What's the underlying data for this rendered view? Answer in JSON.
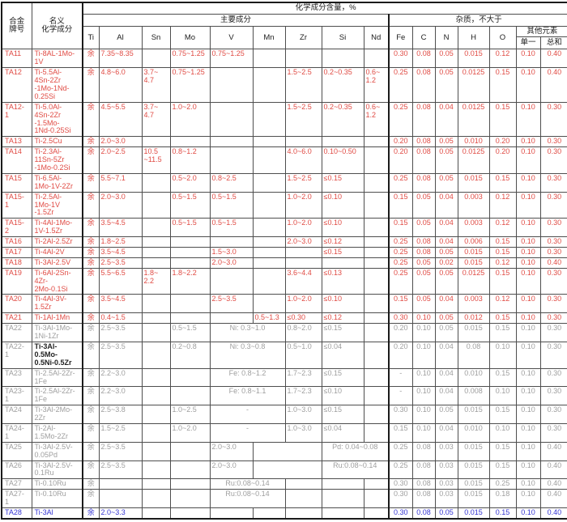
{
  "colors": {
    "primary_red": "#e04b44",
    "secondary_gray": "#9e9e9e",
    "highlight_blue": "#3535d3",
    "dark_text": "#222222",
    "border": "#4e4e4e"
  },
  "header": {
    "grade": "合金\n牌号",
    "nominal": "名义\n化学成分",
    "content_group": "化学成分含量，%",
    "main_group": "主要成分",
    "impurity_group": "杂质，不大于",
    "other_group": "其他元素",
    "main_cols": [
      "Ti",
      "Al",
      "Sn",
      "Mo",
      "V",
      "Mn",
      "Zr",
      "Si",
      "Nd"
    ],
    "impurity_cols": [
      "Fe",
      "C",
      "N",
      "H",
      "O"
    ],
    "other_cols": [
      "单一",
      "总和"
    ]
  },
  "rows": [
    {
      "grade": "TA11",
      "name": "Ti-8AL-1Mo-\n1V",
      "tone": "red",
      "ti": "余",
      "al": "7.35~8.35",
      "sn": "",
      "mo": "0.75~1.25",
      "v": "0.75~1.25",
      "mn": "",
      "zr": "",
      "si": "",
      "nd": "",
      "imp": [
        "0.30",
        "0.08",
        "0.05",
        "0.015",
        "0.12",
        "0.10",
        "0.40"
      ]
    },
    {
      "grade": "TA12",
      "name": "Ti-5.5Al-\n4Sn-2Zr\n-1Mo-1Nd-\n0.25Si",
      "tone": "red",
      "ti": "余",
      "al": "4.8~6.0",
      "sn": "3.7~\n4.7",
      "mo": "0.75~1.25",
      "v": "",
      "mn": "",
      "zr": "1.5~2.5",
      "si": "0.2~0.35",
      "nd": "0.6~\n1.2",
      "imp": [
        "0.25",
        "0.08",
        "0.05",
        "0.0125",
        "0.15",
        "0.10",
        "0.40"
      ]
    },
    {
      "grade": "TA12-\n1",
      "name": "Ti-5.0Al-\n4Sn-2Zr\n-1.5Mo-\n1Nd-0.25Si",
      "tone": "red",
      "ti": "余",
      "al": "4.5~5.5",
      "sn": "3.7~\n4.7",
      "mo": "1.0~2.0",
      "v": "",
      "mn": "",
      "zr": "1.5~2.5",
      "si": "0.2~0.35",
      "nd": "0.6~\n1.2",
      "imp": [
        "0.25",
        "0.08",
        "0.04",
        "0.0125",
        "0.15",
        "0.10",
        "0.30"
      ]
    },
    {
      "grade": "TA13",
      "name": "Ti-2.5Cu",
      "tone": "red",
      "ti": "余",
      "al": "2.0~3.0",
      "sn": "",
      "mo": "",
      "v": "",
      "mn": "",
      "zr": "",
      "si": "",
      "nd": "",
      "imp": [
        "0.20",
        "0.08",
        "0.05",
        "0.010",
        "0.20",
        "0.10",
        "0.30"
      ]
    },
    {
      "grade": "TA14",
      "name": "Ti-2.3Al-\n11Sn-5Zr\n-1Mo-0.2Si",
      "tone": "red",
      "ti": "余",
      "al": "2.0~2.5",
      "sn": "10.5\n~11.5",
      "mo": "0.8~1.2",
      "v": "",
      "mn": "",
      "zr": "4.0~6.0",
      "si": "0.10~0.50",
      "nd": "",
      "imp": [
        "0.20",
        "0.08",
        "0.05",
        "0.0125",
        "0.20",
        "0.10",
        "0.30"
      ]
    },
    {
      "grade": "TA15",
      "name": "Ti-6.5Al-\n1Mo-1V-2Zr",
      "tone": "red",
      "ti": "余",
      "al": "5.5~7.1",
      "sn": "",
      "mo": "0.5~2.0",
      "v": "0.8~2.5",
      "mn": "",
      "zr": "1.5~2.5",
      "si": "≤0.15",
      "nd": "",
      "imp": [
        "0.25",
        "0.08",
        "0.05",
        "0.015",
        "0.15",
        "0.10",
        "0.30"
      ]
    },
    {
      "grade": "TA15-\n1",
      "name": "Ti-2.5Al-\n1Mo-1V\n-1.5Zr",
      "tone": "red",
      "ti": "余",
      "al": "2.0~3.0",
      "sn": "",
      "mo": "0.5~1.5",
      "v": "0.5~1.5",
      "mn": "",
      "zr": "1.0~2.0",
      "si": "≤0.10",
      "nd": "",
      "imp": [
        "0.15",
        "0.05",
        "0.04",
        "0.003",
        "0.12",
        "0.10",
        "0.30"
      ]
    },
    {
      "grade": "TA15-\n2",
      "name": "Ti-4Al-1Mo-\n1V-1.5Zr",
      "tone": "red",
      "ti": "余",
      "al": "3.5~4.5",
      "sn": "",
      "mo": "0.5~1.5",
      "v": "0.5~1.5",
      "mn": "",
      "zr": "1.0~2.0",
      "si": "≤0.10",
      "nd": "",
      "imp": [
        "0.15",
        "0.05",
        "0.04",
        "0.003",
        "0.12",
        "0.10",
        "0.30"
      ]
    },
    {
      "grade": "TA16",
      "name": "Ti-2Al-2.5Zr",
      "tone": "red",
      "ti": "余",
      "al": "1.8~2.5",
      "sn": "",
      "mo": "",
      "v": "",
      "mn": "",
      "zr": "2.0~3.0",
      "si": "≤0.12",
      "nd": "",
      "imp": [
        "0.25",
        "0.08",
        "0.04",
        "0.006",
        "0.15",
        "0.10",
        "0.30"
      ]
    },
    {
      "grade": "TA17",
      "name": "Ti-4Al-2V",
      "tone": "red",
      "ti": "余",
      "al": "3.5~4.5",
      "sn": "",
      "mo": "",
      "v": "1.5~3.0",
      "mn": "",
      "zr": "",
      "si": "≤0.15",
      "nd": "",
      "imp": [
        "0.25",
        "0.08",
        "0.05",
        "0.015",
        "0.15",
        "0.10",
        "0.30"
      ]
    },
    {
      "grade": "TA18",
      "name": "Ti-3Al-2.5V",
      "tone": "red",
      "ti": "余",
      "al": "2.5~3.5",
      "sn": "",
      "mo": "",
      "v": "2.0~3.0",
      "mn": "",
      "zr": "",
      "si": "",
      "nd": "",
      "imp": [
        "0.25",
        "0.05",
        "0.02",
        "0.015",
        "0.12",
        "0.10",
        "0.40"
      ]
    },
    {
      "grade": "TA19",
      "name": "Ti-6Al-2Sn-\n4Zr-\n2Mo-0.1Si",
      "tone": "red",
      "ti": "余",
      "al": "5.5~6.5",
      "sn": "1.8~\n2.2",
      "mo": "1.8~2.2",
      "v": "",
      "mn": "",
      "zr": "3.6~4.4",
      "si": "≤0.13",
      "nd": "",
      "imp": [
        "0.25",
        "0.05",
        "0.05",
        "0.0125",
        "0.15",
        "0.10",
        "0.30"
      ]
    },
    {
      "grade": "TA20",
      "name": "Ti-4Al-3V-\n1.5Zr",
      "tone": "red",
      "ti": "余",
      "al": "3.5~4.5",
      "sn": "",
      "mo": "",
      "v": "2.5~3.5",
      "mn": "",
      "zr": "1.0~2.0",
      "si": "≤0.10",
      "nd": "",
      "imp": [
        "0.15",
        "0.05",
        "0.04",
        "0.003",
        "0.12",
        "0.10",
        "0.30"
      ]
    },
    {
      "grade": "TA21",
      "name": "Ti-1Al-1Mn",
      "tone": "red",
      "ti": "余",
      "al": "0.4~1.5",
      "sn": "",
      "mo": "",
      "v": "",
      "mn": "0.5~1.3",
      "zr": "≤0.30",
      "si": "≤0.12",
      "nd": "",
      "imp": [
        "0.30",
        "0.10",
        "0.05",
        "0.012",
        "0.15",
        "0.10",
        "0.30"
      ]
    },
    {
      "grade": "TA22",
      "name": "Ti-3Al-1Mo-\n1Ni-1Zr",
      "tone": "gray",
      "ti": "余",
      "al": "2.5~3.5",
      "sn": "",
      "mo": "0.5~1.5",
      "v_mn": "Ni: 0.3~1.0",
      "zr": "0.8~2.0",
      "si": "≤0.15",
      "nd": "",
      "imp": [
        "0.20",
        "0.10",
        "0.05",
        "0.015",
        "0.15",
        "0.10",
        "0.30"
      ]
    },
    {
      "grade": "TA22-\n1",
      "name": "Ti-3Al-\n0.5Mo-\n0.5Ni-0.5Zr",
      "tone": "gray",
      "name_dark": true,
      "ti": "余",
      "al": "2.5~3.5",
      "sn": "",
      "mo": "0.2~0.8",
      "v_mn": "Ni: 0.3~0.8",
      "zr": "0.5~1.0",
      "si": "≤0.04",
      "nd": "",
      "imp": [
        "0.20",
        "0.10",
        "0.04",
        "0.08",
        "0.10",
        "0.10",
        "0.30"
      ]
    },
    {
      "grade": "TA23",
      "name": "Ti-2.5Al-2Zr-\n1Fe",
      "tone": "gray",
      "ti": "余",
      "al": "2.2~3.0",
      "sn": "",
      "mo": "",
      "v_mn": "Fe: 0.8~1.2",
      "zr": "1.7~2.3",
      "si": "≤0.15",
      "nd": "",
      "imp": [
        "-",
        "0.10",
        "0.04",
        "0.010",
        "0.15",
        "0.10",
        "0.30"
      ]
    },
    {
      "grade": "TA23-\n1",
      "name": "Ti-2.5Al-2Zr-\n1Fe",
      "tone": "gray",
      "ti": "余",
      "al": "2.2~3.0",
      "sn": "",
      "mo": "",
      "v_mn": "Fe: 0.8~1.1",
      "zr": "1.7~2.3",
      "si": "≤0.10",
      "nd": "",
      "imp": [
        "-",
        "0.10",
        "0.04",
        "0.008",
        "0.10",
        "0.10",
        "0.30"
      ]
    },
    {
      "grade": "TA24",
      "name": "Ti-3Al-2Mo-\n2Zr",
      "tone": "gray",
      "ti": "余",
      "al": "2.5~3.8",
      "sn": "",
      "mo": "1.0~2.5",
      "v_mn": "-",
      "zr": "1.0~3.0",
      "si": "≤0.15",
      "nd": "",
      "imp": [
        "0.30",
        "0.10",
        "0.05",
        "0.015",
        "0.15",
        "0.10",
        "0.30"
      ]
    },
    {
      "grade": "TA24-\n1",
      "name": "Ti-2Al-\n1.5Mo-2Zr",
      "tone": "gray",
      "ti": "余",
      "al": "1.5~2.5",
      "sn": "",
      "mo": "1.0~2.0",
      "v_mn": "-",
      "zr": "1.0~3.0",
      "si": "≤0.04",
      "nd": "",
      "imp": [
        "0.15",
        "0.10",
        "0.04",
        "0.010",
        "0.10",
        "0.10",
        "0.30"
      ]
    },
    {
      "grade": "TA25",
      "name": "Ti-3Al-2.5V-\n0.05Pd",
      "tone": "gray",
      "ti": "余",
      "al": "2.5~3.5",
      "sn": "",
      "mo": "",
      "v": "2.0~3.0",
      "mn_zr": "",
      "si_nd": "Pd: 0.04~0.08",
      "imp": [
        "0.25",
        "0.08",
        "0.03",
        "0.015",
        "0.15",
        "0.10",
        "0.40"
      ]
    },
    {
      "grade": "TA26",
      "name": "Ti-3Al-2.5V-\n0.1Ru",
      "tone": "gray",
      "ti": "余",
      "al": "2.5~3.5",
      "sn": "",
      "mo": "",
      "v": "2.0~3.0",
      "mn_zr": "",
      "si_nd": "Ru:0.08~0.14",
      "imp": [
        "0.25",
        "0.08",
        "0.03",
        "0.015",
        "0.15",
        "0.10",
        "0.40"
      ]
    },
    {
      "grade": "TA27",
      "name": "Ti-0.10Ru",
      "tone": "gray",
      "ti": "余",
      "al": "",
      "sn": "",
      "mo": "",
      "v_mn": "Ru:0.08~0.14",
      "zr": "",
      "si": "",
      "nd": "",
      "imp": [
        "0.30",
        "0.08",
        "0.03",
        "0.015",
        "0.25",
        "0.10",
        "0.40"
      ]
    },
    {
      "grade": "TA27-\n1",
      "name": "Ti-0.10Ru",
      "tone": "gray",
      "ti": "余",
      "al": "",
      "sn": "",
      "mo": "",
      "v_mn": "Ru:0.08~0.14",
      "zr": "",
      "si": "",
      "nd": "",
      "imp": [
        "0.30",
        "0.08",
        "0.03",
        "0.015",
        "0.18",
        "0.10",
        "0.40"
      ]
    },
    {
      "grade": "TA28",
      "name": "Ti-3Al",
      "tone": "blue",
      "ti": "余",
      "al": "2.0~3.3",
      "sn": "",
      "mo": "",
      "v": "",
      "mn": "",
      "zr": "",
      "si": "",
      "nd": "",
      "imp": [
        "0.30",
        "0.08",
        "0.05",
        "0.015",
        "0.15",
        "0.10",
        "0.40"
      ]
    }
  ]
}
